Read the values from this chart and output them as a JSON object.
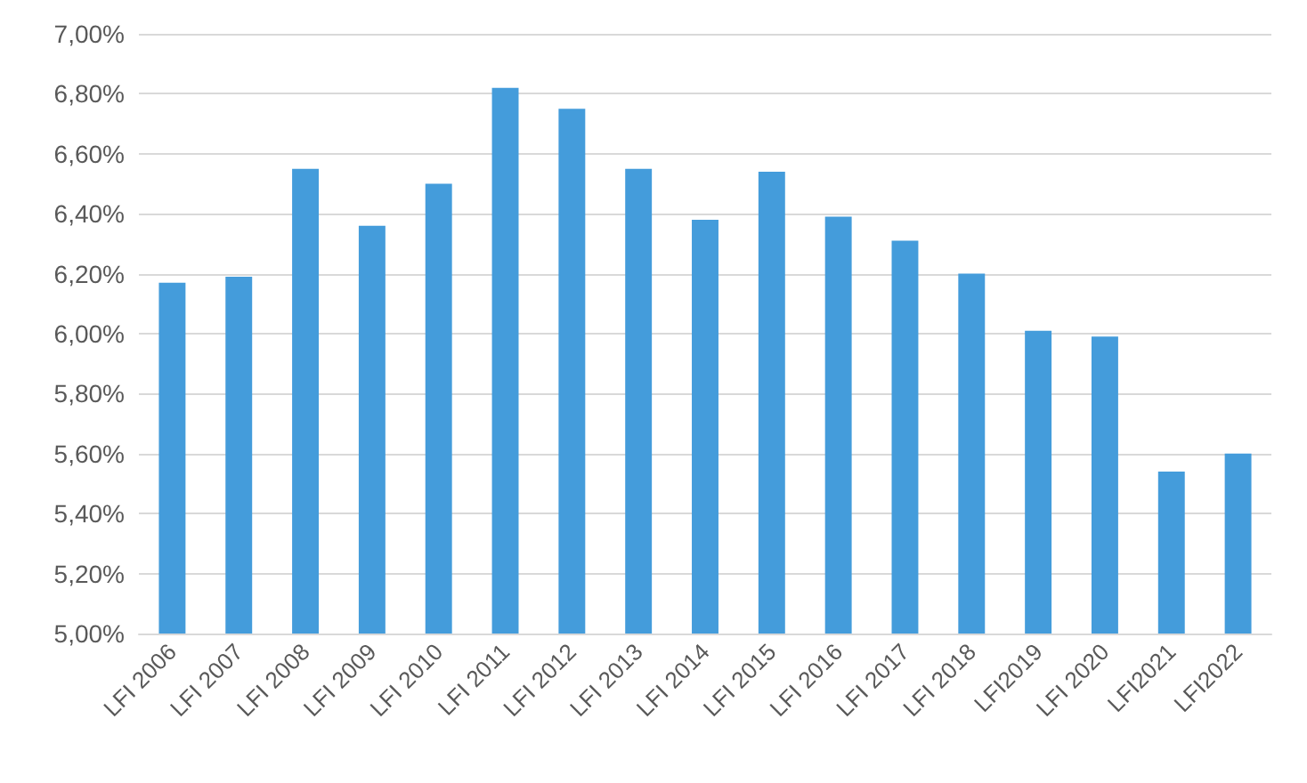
{
  "chart_data": {
    "type": "bar",
    "categories": [
      "LFI 2006",
      "LFI 2007",
      "LFI 2008",
      "LFI 2009",
      "LFI 2010",
      "LFI 2011",
      "LFI 2012",
      "LFI 2013",
      "LFI 2014",
      "LFI 2015",
      "LFI 2016",
      "LFI 2017",
      "LFI 2018",
      "LFI2019",
      "LFI 2020",
      "LFI2021",
      "LFI2022"
    ],
    "values": [
      6.17,
      6.19,
      6.55,
      6.36,
      6.5,
      6.82,
      6.75,
      6.55,
      6.38,
      6.54,
      6.39,
      6.31,
      6.2,
      6.01,
      5.99,
      5.54,
      5.6
    ],
    "color": "#449cdb",
    "ylim": [
      5,
      7
    ],
    "yticks": [
      {
        "value": 5,
        "label": "5,00%"
      },
      {
        "value": 5.2,
        "label": "5,20%"
      },
      {
        "value": 5.4,
        "label": "5,40%"
      },
      {
        "value": 5.6,
        "label": "5,60%"
      },
      {
        "value": 5.8,
        "label": "5,80%"
      },
      {
        "value": 6,
        "label": "6,00%"
      },
      {
        "value": 6.2,
        "label": "6,20%"
      },
      {
        "value": 6.4,
        "label": "6,40%"
      },
      {
        "value": 6.6,
        "label": "6,60%"
      },
      {
        "value": 6.8,
        "label": "6,80%"
      },
      {
        "value": 7,
        "label": "7,00%"
      }
    ],
    "grid": true
  }
}
